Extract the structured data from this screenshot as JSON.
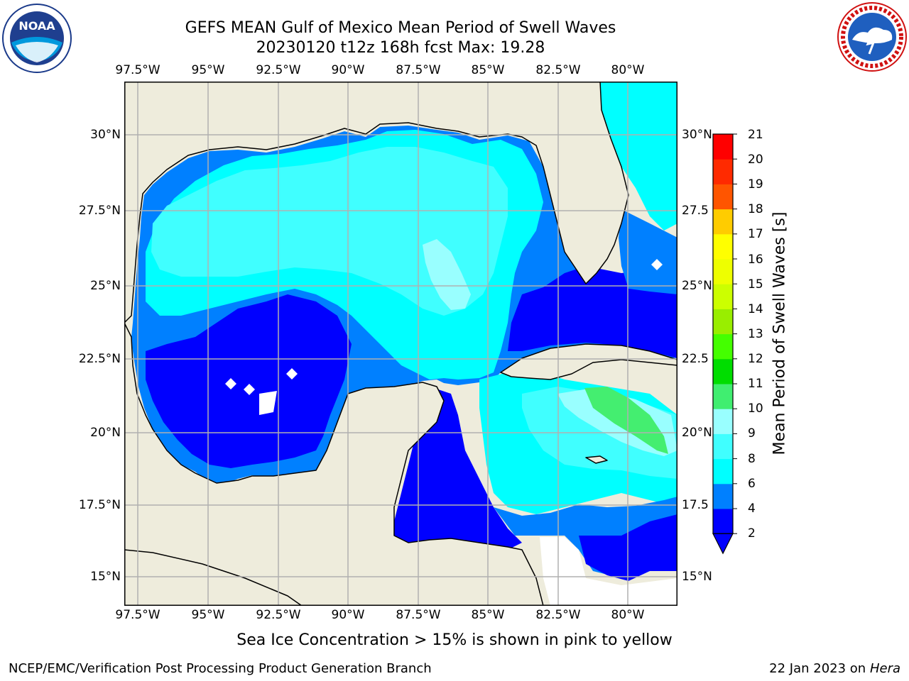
{
  "title_line1": "GEFS MEAN Gulf of Mexico Mean Period of Swell Waves",
  "title_line2": "20230120 t12z 168h fcst   Max: 19.28",
  "lon_labels": [
    "97.5°W",
    "95°W",
    "92.5°W",
    "90°W",
    "87.5°W",
    "85°W",
    "82.5°W",
    "80°W"
  ],
  "lat_labels": [
    "30°N",
    "27.5°N",
    "25°N",
    "22.5°N",
    "20°N",
    "17.5°N",
    "15°N"
  ],
  "lat_labels_right": [
    "30°N",
    "27.5",
    "25°N",
    "22.5",
    "20°N",
    "17.5",
    "15°N"
  ],
  "colorbar": {
    "label": "Mean Period of Swell Waves [s]",
    "ticks": [
      "21",
      "20",
      "19",
      "18",
      "17",
      "16",
      "15",
      "14",
      "13",
      "12",
      "11",
      "10",
      "9",
      "8",
      "6",
      "4",
      "2"
    ],
    "colors": [
      "#0000ff",
      "#0080ff",
      "#00ffff",
      "#40ffff",
      "#99ffff",
      "#40ee70",
      "#00dd00",
      "#44ff00",
      "#99ee00",
      "#ccff00",
      "#eeff00",
      "#ffff00",
      "#ffcc00",
      "#ffaa00",
      "#ff8000",
      "#ff5500",
      "#ff2a00",
      "#ff0000"
    ],
    "extend_color": "#0000ff"
  },
  "footnote": "Sea Ice Concentration > 15% is shown in pink to yellow",
  "credit_left": "NCEP/EMC/Verification Post Processing Product Generation Branch",
  "credit_date": "22 Jan 2023 on",
  "credit_machine": "Hera",
  "logos": {
    "left": "noaa-logo",
    "right": "nws-logo",
    "right_ring_text": "NATIONAL WEATHER SERVICE",
    "left_ring_text": "NATIONAL OCEANIC AND ATMOSPHERIC ADMINISTRATION · U.S. DEPARTMENT OF COMMERCE"
  },
  "colors": {
    "land": "#eeecdc",
    "grid": "#b0b0b0",
    "deep_blue": "#0000ff",
    "mid_blue": "#0080ff",
    "cyan": "#00ffff",
    "light_cyan": "#40ffff",
    "pale_cyan": "#99ffff"
  }
}
